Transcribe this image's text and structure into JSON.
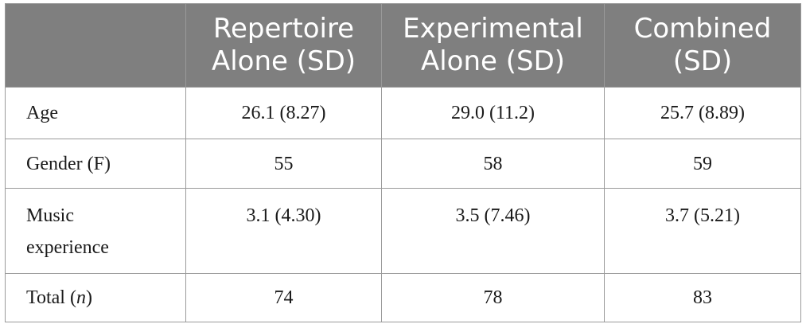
{
  "table": {
    "header": {
      "corner": "",
      "col1_line1": "Repertoire",
      "col1_line2": "Alone (SD)",
      "col2_line1": "Experimental",
      "col2_line2": "Alone (SD)",
      "col3_line1": "Combined",
      "col3_line2": "(SD)"
    },
    "rows": {
      "age": {
        "label": "Age",
        "repertoire": "26.1 (8.27)",
        "experimental": "29.0 (11.2)",
        "combined": "25.7 (8.89)"
      },
      "gender": {
        "label": "Gender (F)",
        "repertoire": "55",
        "experimental": "58",
        "combined": "59"
      },
      "music": {
        "label_line1": "Music",
        "label_line2": "experience",
        "repertoire": "3.1 (4.30)",
        "experimental": "3.5 (7.46)",
        "combined": "3.7 (5.21)"
      },
      "total": {
        "label_prefix": "Total (",
        "label_italic": "n",
        "label_suffix": ")",
        "repertoire": "74",
        "experimental": "78",
        "combined": "83"
      }
    }
  }
}
